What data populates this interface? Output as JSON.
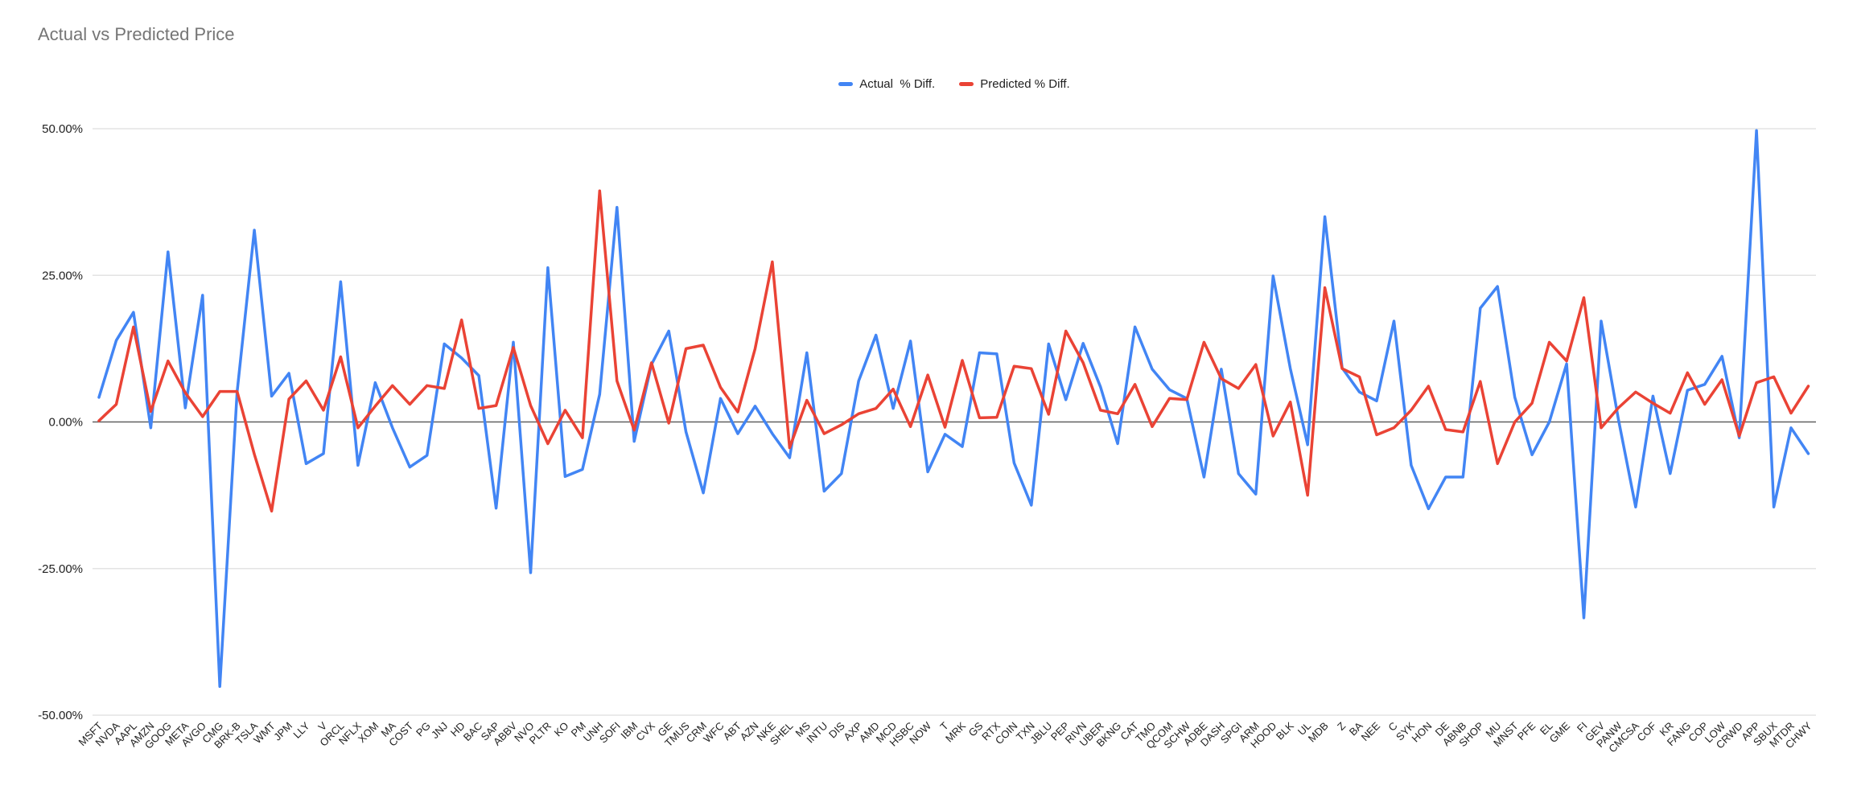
{
  "title": "Actual vs Predicted Price",
  "legend": {
    "items": [
      {
        "label": "Actual  % Diff.",
        "color": "#4285f4"
      },
      {
        "label": "Predicted % Diff.",
        "color": "#ea4335"
      }
    ]
  },
  "axis": {
    "ytick_labels": [
      "50.00%",
      "25.00%",
      "0.00%",
      "-25.00%",
      "-50.00%"
    ],
    "yticks": [
      50,
      25,
      0,
      -25,
      -50
    ]
  },
  "colors": {
    "actual": "#4285f4",
    "predicted": "#ea4335",
    "gridline": "#e3e3e3",
    "zero_line": "#616161",
    "axis_text": "#1f1f1f",
    "title_text": "#757575"
  },
  "chart_data": {
    "type": "line",
    "title": "Actual vs Predicted Price",
    "xlabel": "",
    "ylabel": "",
    "ylim": [
      -50,
      50
    ],
    "yticks": [
      50,
      25,
      0,
      -25,
      -50
    ],
    "grid": true,
    "legend_position": "top-center",
    "value_unit": "percent",
    "categories": [
      "MSFT",
      "NVDA",
      "AAPL",
      "AMZN",
      "GOOG",
      "META",
      "AVGO",
      "CMG",
      "BRK-B",
      "TSLA",
      "WMT",
      "JPM",
      "LLY",
      "V",
      "ORCL",
      "NFLX",
      "XOM",
      "MA",
      "COST",
      "PG",
      "JNJ",
      "HD",
      "BAC",
      "SAP",
      "ABBV",
      "NVO",
      "PLTR",
      "KO",
      "PM",
      "UNH",
      "SOFI",
      "IBM",
      "CVX",
      "GE",
      "TMUS",
      "CRM",
      "WFC",
      "ABT",
      "AZN",
      "NKE",
      "SHEL",
      "MS",
      "INTU",
      "DIS",
      "AXP",
      "AMD",
      "MCD",
      "HSBC",
      "NOW",
      "T",
      "MRK",
      "GS",
      "RTX",
      "COIN",
      "TXN",
      "JBLU",
      "PEP",
      "RIVN",
      "UBER",
      "BKNG",
      "CAT",
      "TMO",
      "QCOM",
      "SCHW",
      "ADBE",
      "DASH",
      "SPGI",
      "ARM",
      "HOOD",
      "BLK",
      "UL",
      "MDB",
      "Z",
      "BA",
      "NEE",
      "C",
      "SYK",
      "HON",
      "DE",
      "ABNB",
      "SHOP",
      "MU",
      "MNST",
      "PFE",
      "EL",
      "GME",
      "FI",
      "GEV",
      "PANW",
      "CMCSA",
      "COF",
      "KR",
      "FANG",
      "COP",
      "LOW",
      "CRWD",
      "APP",
      "SBUX",
      "MTDR",
      "CHWY"
    ],
    "series": [
      {
        "name": "Actual  % Diff.",
        "color": "#4285f4",
        "values": [
          4.2,
          13.9,
          18.7,
          -1,
          29,
          2.4,
          21.6,
          -45.1,
          5.1,
          32.7,
          4.4,
          8.3,
          -7.1,
          -5.4,
          23.9,
          -7.4,
          6.7,
          -1,
          -7.7,
          -5.7,
          13.3,
          10.9,
          7.9,
          -14.7,
          13.6,
          -25.7,
          26.3,
          -9.3,
          -8.1,
          4.7,
          36.6,
          -3.3,
          9.8,
          15.5,
          -1.7,
          -12.1,
          4,
          -2,
          2.7,
          -2,
          -6.1,
          11.8,
          -11.8,
          -8.8,
          7,
          14.8,
          2.3,
          13.8,
          -8.5,
          -2.1,
          -4.2,
          11.8,
          11.6,
          -7,
          -14.2,
          13.3,
          3.8,
          13.4,
          6,
          -3.7,
          16.2,
          9,
          5.5,
          4,
          -9.4,
          9,
          -8.8,
          -12.3,
          24.9,
          9.1,
          -3.9,
          35,
          9.2,
          5.1,
          3.6,
          17.2,
          -7.4,
          -14.8,
          -9.4,
          -9.4,
          19.4,
          23.1,
          4.2,
          -5.6,
          0,
          9.9,
          -33.4,
          17.2,
          0.5,
          -14.5,
          4.4,
          -8.8,
          5.4,
          6.4,
          11.2,
          -2.7,
          49.7,
          -14.5,
          -1,
          -5.4
        ]
      },
      {
        "name": "Predicted % Diff.",
        "color": "#ea4335",
        "values": [
          0.2,
          3,
          16.2,
          1.8,
          10.4,
          5,
          0.9,
          5.2,
          5.2,
          -5.5,
          -15.2,
          3.9,
          7,
          2,
          11.1,
          -1,
          2.7,
          6.2,
          3,
          6.2,
          5.7,
          17.4,
          2.3,
          2.8,
          12.7,
          2.8,
          -3.7,
          2,
          -2.7,
          39.4,
          7,
          -1.4,
          10.1,
          -0.2,
          12.5,
          13.1,
          5.9,
          1.7,
          12.5,
          27.3,
          -4.4,
          3.7,
          -2,
          -0.5,
          1.4,
          2.3,
          5.6,
          -0.8,
          8,
          -0.9,
          10.5,
          0.7,
          0.8,
          9.5,
          9.1,
          1.3,
          15.5,
          10.1,
          2,
          1.4,
          6.4,
          -0.8,
          4,
          3.8,
          13.6,
          7.4,
          5.7,
          9.8,
          -2.4,
          3.4,
          -12.5,
          22.9,
          9.1,
          7.7,
          -2.2,
          -1,
          2,
          6.1,
          -1.3,
          -1.7,
          6.9,
          -7.1,
          0,
          3.2,
          13.6,
          10.4,
          21.2,
          -1,
          2.4,
          5.1,
          3.2,
          1.5,
          8.4,
          3,
          7.2,
          -2.4,
          6.7,
          7.7,
          1.5,
          6.1
        ]
      }
    ]
  }
}
